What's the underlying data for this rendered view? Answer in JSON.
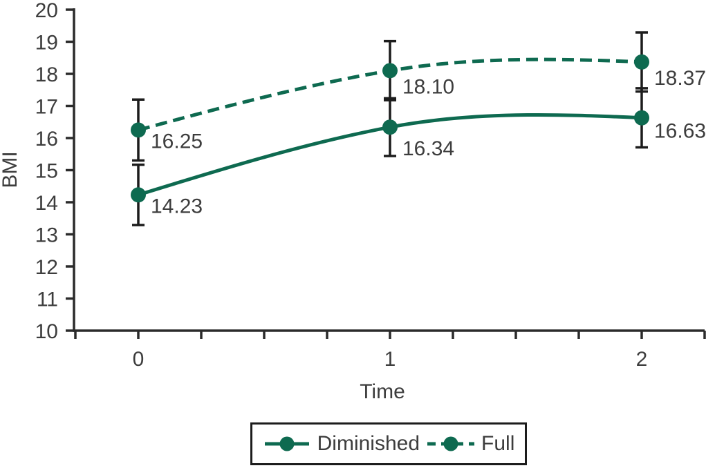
{
  "chart_data": {
    "type": "line",
    "title": "",
    "xlabel": "Time",
    "ylabel": "BMI",
    "x": [
      0,
      1,
      2
    ],
    "x_tick_labels": [
      "0",
      "1",
      "2"
    ],
    "x_minor_tick_step": 0.25,
    "xlim": [
      -0.25,
      2.25
    ],
    "y_ticks": [
      10,
      11,
      12,
      13,
      14,
      15,
      16,
      17,
      18,
      19,
      20
    ],
    "ylim": [
      10,
      20
    ],
    "grid": false,
    "legend_position": "bottom-center-boxed",
    "error_bars": true,
    "series": [
      {
        "name": "Diminished",
        "line_style": "solid",
        "marker": "circle",
        "values": [
          14.23,
          16.34,
          16.63
        ],
        "point_labels": [
          "14.23",
          "16.34",
          "16.63"
        ],
        "errors": [
          0.94,
          0.9,
          0.92
        ],
        "label_dy": [
          15,
          30,
          18
        ]
      },
      {
        "name": "Full",
        "line_style": "dashed",
        "marker": "circle",
        "values": [
          16.25,
          18.1,
          18.37
        ],
        "point_labels": [
          "16.25",
          "18.10",
          "18.37"
        ],
        "errors": [
          0.95,
          0.92,
          0.92
        ],
        "label_dy": [
          15,
          22,
          22
        ]
      }
    ],
    "colors": {
      "series": "#0e6a50",
      "axis": "#2b2b2b",
      "error_bar": "#1c1c1c",
      "text": "#3d3d3d"
    }
  },
  "legend": {
    "items": [
      {
        "label": "Diminished"
      },
      {
        "label": "Full"
      }
    ]
  }
}
